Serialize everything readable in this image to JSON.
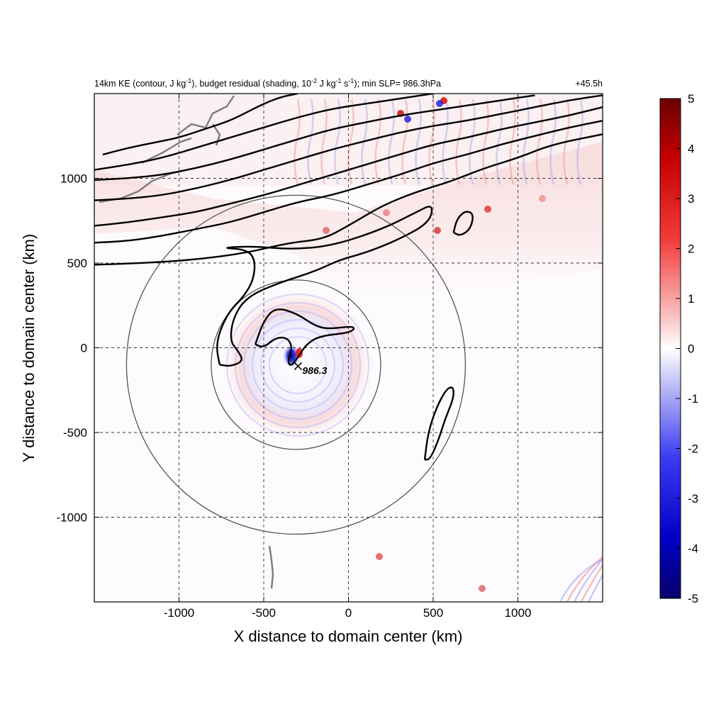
{
  "chart_data": {
    "type": "heatmap",
    "title": {
      "main_before": "14km KE (contour, J kg",
      "main_sup1": "-1",
      "main_mid1": "), budget residual (shading, 10",
      "main_sup2": "-2",
      "main_mid2": " J kg",
      "main_sup3": "-1",
      "main_mid3": " s",
      "main_sup4": "-1",
      "main_after": "); min SLP= 986.3hPa",
      "right": "+45.5h"
    },
    "xlabel": "X distance to domain center (km)",
    "ylabel": "Y distance to domain center (km)",
    "xlim": [
      -1500,
      1500
    ],
    "ylim": [
      -1500,
      1500
    ],
    "xticks": [
      -1000,
      -500,
      0,
      500,
      1000
    ],
    "yticks": [
      1000,
      500,
      0,
      -500,
      -1000
    ],
    "grid": true,
    "colorbar": {
      "range": [
        -5,
        5
      ],
      "ticks": [
        5,
        4,
        3,
        2,
        1,
        0,
        -1,
        -2,
        -3,
        -4,
        -5
      ],
      "colors": [
        "#08006b",
        "#1f1fe6",
        "#7a7af0",
        "#d4d4f7",
        "#ffffff",
        "#f7d4d4",
        "#f07a7a",
        "#e61f1f",
        "#6b0000"
      ]
    },
    "storm_center": {
      "x": -310,
      "y": -100,
      "label": "986.3"
    },
    "range_rings_km": [
      500,
      1000
    ],
    "ke_contours": [
      {
        "name": "jet-1",
        "points": [
          [
            -1500,
            490
          ],
          [
            -1200,
            500
          ],
          [
            -900,
            520
          ],
          [
            -600,
            560
          ],
          [
            -350,
            620
          ],
          [
            -150,
            640
          ],
          [
            0,
            720
          ],
          [
            200,
            840
          ],
          [
            400,
            920
          ],
          [
            600,
            980
          ],
          [
            800,
            1060
          ],
          [
            1000,
            1120
          ],
          [
            1200,
            1200
          ],
          [
            1500,
            1260
          ]
        ]
      },
      {
        "name": "jet-2",
        "points": [
          [
            -1500,
            620
          ],
          [
            -1300,
            630
          ],
          [
            -1100,
            660
          ],
          [
            -900,
            700
          ],
          [
            -700,
            740
          ],
          [
            -500,
            800
          ],
          [
            -300,
            860
          ],
          [
            -100,
            900
          ],
          [
            100,
            960
          ],
          [
            300,
            1020
          ],
          [
            500,
            1090
          ],
          [
            700,
            1140
          ],
          [
            900,
            1200
          ],
          [
            1100,
            1250
          ],
          [
            1300,
            1300
          ],
          [
            1500,
            1340
          ]
        ]
      },
      {
        "name": "jet-3",
        "points": [
          [
            -1500,
            720
          ],
          [
            -1300,
            740
          ],
          [
            -1100,
            770
          ],
          [
            -900,
            800
          ],
          [
            -700,
            850
          ],
          [
            -500,
            900
          ],
          [
            -300,
            960
          ],
          [
            -100,
            1020
          ],
          [
            100,
            1080
          ],
          [
            300,
            1140
          ],
          [
            500,
            1200
          ],
          [
            700,
            1240
          ],
          [
            900,
            1290
          ],
          [
            1100,
            1330
          ],
          [
            1300,
            1370
          ],
          [
            1500,
            1420
          ]
        ]
      },
      {
        "name": "jet-4",
        "points": [
          [
            -1500,
            870
          ],
          [
            -1300,
            880
          ],
          [
            -1100,
            900
          ],
          [
            -900,
            940
          ],
          [
            -700,
            990
          ],
          [
            -500,
            1050
          ],
          [
            -300,
            1110
          ],
          [
            -100,
            1170
          ],
          [
            100,
            1220
          ],
          [
            300,
            1270
          ],
          [
            500,
            1310
          ],
          [
            700,
            1340
          ],
          [
            900,
            1380
          ],
          [
            1100,
            1420
          ],
          [
            1300,
            1460
          ],
          [
            1500,
            1490
          ]
        ]
      },
      {
        "name": "jet-5",
        "points": [
          [
            -1500,
            990
          ],
          [
            -1300,
            1000
          ],
          [
            -1100,
            1020
          ],
          [
            -900,
            1060
          ],
          [
            -700,
            1110
          ],
          [
            -500,
            1170
          ],
          [
            -300,
            1230
          ],
          [
            -100,
            1290
          ],
          [
            100,
            1330
          ],
          [
            300,
            1370
          ],
          [
            500,
            1400
          ],
          [
            700,
            1430
          ],
          [
            900,
            1460
          ],
          [
            1100,
            1490
          ]
        ]
      },
      {
        "name": "jet-6",
        "points": [
          [
            -1500,
            1050
          ],
          [
            -1300,
            1080
          ],
          [
            -1100,
            1120
          ],
          [
            -900,
            1180
          ],
          [
            -700,
            1240
          ],
          [
            -500,
            1300
          ],
          [
            -300,
            1360
          ],
          [
            -100,
            1410
          ],
          [
            100,
            1440
          ],
          [
            300,
            1470
          ],
          [
            500,
            1500
          ]
        ]
      },
      {
        "name": "jet-7",
        "points": [
          [
            -1450,
            1140
          ],
          [
            -1300,
            1180
          ],
          [
            -1150,
            1210
          ],
          [
            -1000,
            1240
          ],
          [
            -850,
            1290
          ],
          [
            -700,
            1340
          ],
          [
            -600,
            1390
          ],
          [
            -500,
            1440
          ],
          [
            -400,
            1480
          ],
          [
            -300,
            1500
          ]
        ]
      },
      {
        "name": "tongue",
        "points": [
          [
            -760,
            -100
          ],
          [
            -780,
            0
          ],
          [
            -760,
            100
          ],
          [
            -700,
            220
          ],
          [
            -620,
            300
          ],
          [
            -560,
            400
          ],
          [
            -550,
            520
          ],
          [
            -600,
            580
          ],
          [
            -760,
            590
          ],
          [
            -560,
            600
          ],
          [
            -350,
            580
          ],
          [
            -100,
            600
          ],
          [
            200,
            700
          ],
          [
            400,
            800
          ],
          [
            500,
            850
          ],
          [
            480,
            740
          ],
          [
            300,
            640
          ],
          [
            100,
            560
          ],
          [
            -50,
            520
          ],
          [
            -200,
            450
          ],
          [
            -420,
            380
          ],
          [
            -600,
            300
          ],
          [
            -680,
            180
          ],
          [
            -700,
            40
          ],
          [
            -650,
            -20
          ],
          [
            -620,
            -80
          ],
          [
            -700,
            -110
          ],
          [
            -760,
            -100
          ]
        ]
      },
      {
        "name": "core",
        "points": [
          [
            -550,
            20
          ],
          [
            -500,
            160
          ],
          [
            -430,
            240
          ],
          [
            -300,
            200
          ],
          [
            -200,
            130
          ],
          [
            -120,
            110
          ],
          [
            40,
            130
          ],
          [
            20,
            90
          ],
          [
            -170,
            70
          ],
          [
            -250,
            20
          ],
          [
            -300,
            -60
          ],
          [
            -340,
            -110
          ],
          [
            -360,
            -80
          ],
          [
            -330,
            0
          ],
          [
            -360,
            60
          ],
          [
            -430,
            60
          ],
          [
            -500,
            0
          ],
          [
            -550,
            20
          ]
        ]
      },
      {
        "name": "east-pod",
        "points": [
          [
            450,
            -660
          ],
          [
            470,
            -500
          ],
          [
            520,
            -350
          ],
          [
            580,
            -240
          ],
          [
            620,
            -230
          ],
          [
            620,
            -300
          ],
          [
            570,
            -420
          ],
          [
            530,
            -550
          ],
          [
            480,
            -660
          ],
          [
            450,
            -660
          ]
        ]
      },
      {
        "name": "small-loop",
        "points": [
          [
            620,
            680
          ],
          [
            640,
            760
          ],
          [
            690,
            810
          ],
          [
            740,
            790
          ],
          [
            720,
            700
          ],
          [
            660,
            660
          ],
          [
            620,
            680
          ]
        ]
      }
    ]
  }
}
